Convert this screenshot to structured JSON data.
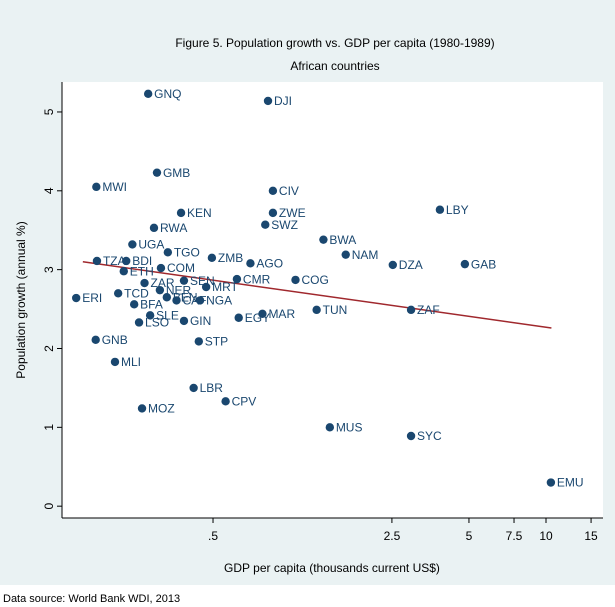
{
  "chart_data": {
    "type": "scatter",
    "title": "Figure 5. Population growth vs. GDP per capita (1980-1989)",
    "subtitle": "African countries",
    "x_label": "GDP per capita (thousands current US$)",
    "y_label": "Population growth (annual %)",
    "note": "Data source: World Bank WDI, 2013",
    "x_log": true,
    "color": "#1a476f",
    "labels": [
      "GNQ",
      "DJI",
      "GMB",
      "MWI",
      "CIV",
      "KEN",
      "ZWE",
      "LBY",
      "SWZ",
      "RWA",
      "BWA",
      "UGA",
      "TGO",
      "NAM",
      "ZMB",
      "TZA",
      "BDI",
      "AGO",
      "DZA",
      "GAB",
      "ETH",
      "ZAR",
      "COM",
      "NER",
      "BEN",
      "CAF",
      "NGA",
      "SEN",
      "MRT",
      "CMR",
      "COG",
      "ERI",
      "TCD",
      "BFA",
      "LSO",
      "SLE",
      "GIN",
      "STP",
      "GNB",
      "MLI",
      "EGY",
      "MAR",
      "TUN",
      "ZAF",
      "LBR",
      "CPV",
      "MOZ",
      "MUS",
      "SYC",
      "EMU"
    ],
    "x": [
      0.279,
      0.82,
      0.302,
      0.175,
      0.857,
      0.375,
      0.857,
      3.85,
      0.8,
      0.294,
      1.35,
      0.242,
      0.333,
      1.65,
      0.495,
      0.176,
      0.229,
      0.7,
      2.52,
      4.82,
      0.224,
      0.27,
      0.313,
      0.31,
      0.33,
      0.36,
      0.445,
      0.385,
      0.47,
      0.62,
      1.05,
      0.146,
      0.213,
      0.246,
      0.257,
      0.284,
      0.385,
      0.44,
      0.174,
      0.207,
      0.63,
      0.78,
      1.27,
      2.97,
      0.42,
      0.56,
      0.264,
      1.43,
      2.97,
      10.45
    ],
    "y": [
      5.23,
      5.14,
      4.23,
      4.05,
      4.0,
      3.72,
      3.72,
      3.76,
      3.57,
      3.53,
      3.38,
      3.32,
      3.22,
      3.19,
      3.15,
      3.11,
      3.11,
      3.08,
      3.06,
      3.07,
      2.98,
      2.83,
      3.02,
      2.74,
      2.65,
      2.61,
      2.61,
      2.86,
      2.78,
      2.88,
      2.87,
      2.64,
      2.7,
      2.56,
      2.33,
      2.42,
      2.35,
      2.09,
      2.11,
      1.83,
      2.39,
      2.44,
      2.49,
      2.49,
      1.5,
      1.33,
      1.24,
      1.0,
      0.89,
      0.3
    ],
    "fit_line": {
      "x": [
        0.155,
        10.5
      ],
      "y": [
        3.1,
        2.26
      ],
      "color": "#a0282d"
    },
    "xlim": [
      0.1285,
      16.7
    ],
    "ylim": [
      -0.15,
      5.38
    ],
    "xticks": [
      {
        "value": 0.5,
        "label": ".5"
      },
      2.5,
      5,
      7.5,
      10,
      15
    ],
    "yticks": [
      0,
      1,
      2,
      3,
      4,
      5
    ]
  }
}
